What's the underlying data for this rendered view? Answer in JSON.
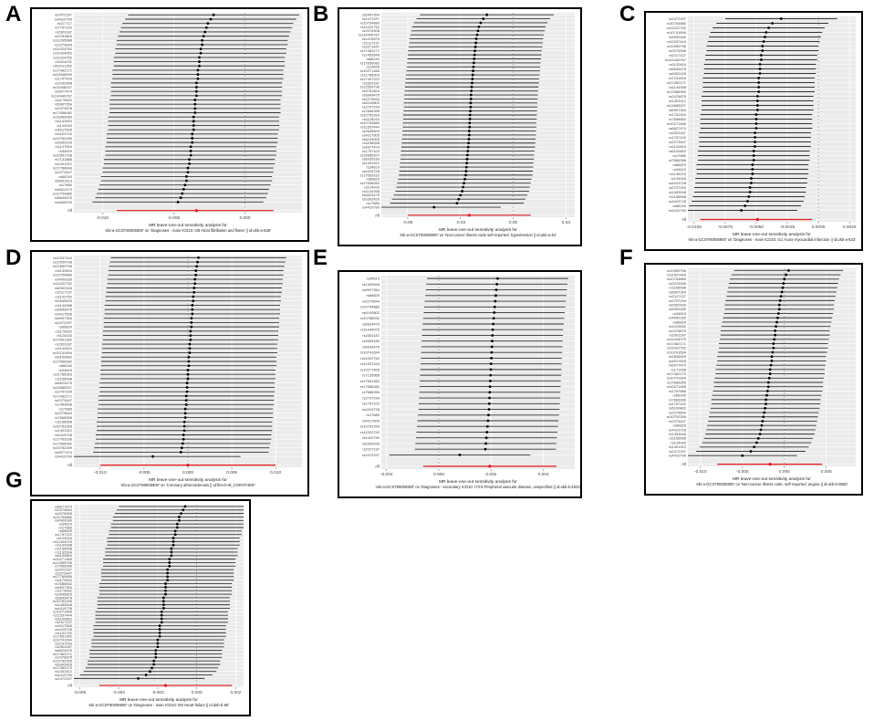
{
  "figure": {
    "panels": [
      {
        "letter": "A"
      },
      {
        "letter": "B"
      },
      {
        "letter": "C"
      },
      {
        "letter": "D"
      },
      {
        "letter": "E"
      },
      {
        "letter": "F"
      },
      {
        "letter": "G"
      }
    ]
  },
  "chart_data": [
    {
      "type": "scatter",
      "panel": "A",
      "title": "MR leave-one-out sensitivity analysis for",
      "subtitle": "'ebi-a-GCST90006900' on 'Diagnoses - main ICD10: I48 Atrial fibrillation and flutter || id:ukb-a-536'",
      "xlabel": "",
      "ylabel": "",
      "xlim": [
        -0.012,
        0.004
      ],
      "xticks": [
        -0.01,
        -0.005,
        0.0
      ],
      "grid": true,
      "all_label": "All",
      "snps": [
        "rs2472297",
        "rs4410790",
        "rs117717",
        "rs7757102",
        "rs2301187",
        "rs3761804",
        "rs11295088",
        "rs2279644",
        "rs11024752",
        "rs11024052",
        "rs11024752",
        "rs1024211",
        "rs61011352",
        "rs17462171",
        "rs10948290",
        "rs1767204",
        "rs3760308",
        "rs14408037",
        "rs6977474",
        "rs114440767",
        "rs1179632",
        "rs6907354",
        "rs2473578",
        "rs17656082",
        "rs15369080",
        "rs1142810",
        "rs124043",
        "rs4017505",
        "rs1123744",
        "rs10752269",
        "rs6302426",
        "rs1147504",
        "rs34619",
        "rs10591798",
        "rs7131888",
        "rs1401912",
        "rs17769643",
        "rs2273447",
        "rs66240",
        "rs6691813",
        "rs17680",
        "rs5622473",
        "rs10754880",
        "rs6649475",
        "rs4849029"
      ],
      "estimates": [
        -0.0022,
        -0.0024,
        -0.0026,
        -0.0027,
        -0.0028,
        -0.0029,
        -0.003,
        -0.003,
        -0.0031,
        -0.0031,
        -0.0032,
        -0.0032,
        -0.0032,
        -0.0033,
        -0.0033,
        -0.0033,
        -0.0034,
        -0.0034,
        -0.0034,
        -0.0034,
        -0.0035,
        -0.0035,
        -0.0035,
        -0.0035,
        -0.0036,
        -0.0036,
        -0.0036,
        -0.0036,
        -0.0037,
        -0.0037,
        -0.0037,
        -0.0038,
        -0.0038,
        -0.0038,
        -0.0039,
        -0.0039,
        -0.004,
        -0.004,
        -0.0041,
        -0.0041,
        -0.0042,
        -0.0043,
        -0.0044,
        -0.0045,
        -0.0047
      ],
      "ci_half_width": 0.006,
      "all_estimate": -0.0034,
      "all_ci": [
        -0.009,
        0.002
      ]
    },
    {
      "type": "scatter",
      "panel": "B",
      "title": "MR leave-one-out sensitivity analysis for",
      "subtitle": "'ebi-a-GCST90006900' on 'Non-cancer illness code self-reported: hypertension || id:ukb-a-61'",
      "xlabel": "",
      "ylabel": "",
      "xlim": [
        -0.075,
        0.035
      ],
      "xticks": [
        -0.06,
        -0.03,
        0.0,
        0.03
      ],
      "grid": true,
      "all_label": "All",
      "snps": [
        "rs6907354",
        "rs2472297",
        "rs10754880",
        "rs11022752",
        "rs2076306",
        "rs114440767",
        "rs2476875",
        "rs2117137",
        "rs2273447",
        "rs17462171",
        "rs1453548",
        "rs66240",
        "rs17656082",
        "rs10826",
        "rs10271465",
        "rs11766303",
        "rs17407022",
        "rs2301187",
        "rs12559796",
        "rs3761804",
        "rs6649475",
        "rs2279644",
        "rs6100802",
        "rs2797294",
        "rs7666396",
        "rs10752269",
        "rs1128243",
        "rs10754880",
        "rs11537444",
        "rs2645829",
        "rs4017505",
        "rs6104005",
        "rs1156598",
        "rs6977474",
        "rs1757102",
        "rs14685207",
        "rs6935183",
        "rs1401912",
        "rs34619",
        "rs4419728",
        "rs17653162",
        "rs66829",
        "rs17656082",
        "rs124043",
        "rs1144398",
        "rs6624475",
        "rs6302426",
        "rs17680",
        "rs4410790"
      ],
      "estimates": [
        -0.015,
        -0.017,
        -0.0185,
        -0.0195,
        -0.02,
        -0.0205,
        -0.021,
        -0.0212,
        -0.0215,
        -0.0218,
        -0.022,
        -0.0222,
        -0.0224,
        -0.0226,
        -0.0228,
        -0.023,
        -0.0232,
        -0.0234,
        -0.0236,
        -0.0238,
        -0.024,
        -0.024,
        -0.0242,
        -0.0242,
        -0.0244,
        -0.0246,
        -0.0246,
        -0.0248,
        -0.0248,
        -0.025,
        -0.025,
        -0.0252,
        -0.0254,
        -0.0256,
        -0.0258,
        -0.026,
        -0.0262,
        -0.0264,
        -0.0266,
        -0.0268,
        -0.027,
        -0.0275,
        -0.028,
        -0.0285,
        -0.029,
        -0.03,
        -0.031,
        -0.032,
        -0.045
      ],
      "ci_half_width": 0.038,
      "all_estimate": -0.025,
      "all_ci": [
        -0.06,
        0.01
      ]
    },
    {
      "type": "scatter",
      "panel": "C",
      "title": "MR leave-one-out sensitivity analysis for",
      "subtitle": "'ebi-a-GCST90006900' on 'Diagnoses - main ICD10: I21 Acute myocardial infarction || id:ukb-a-533'",
      "xlabel": "",
      "ylabel": "",
      "xlim": [
        -0.0105,
        0.003
      ],
      "xticks": [
        -0.01,
        -0.0075,
        -0.005,
        -0.0025,
        0.0,
        0.0025
      ],
      "grid": true,
      "all_label": "All",
      "snps": [
        "rs2472297",
        "rs10754880",
        "rs11022752",
        "rs10741694",
        "rs4909180",
        "rs11537444",
        "rs12559796",
        "rs2076306",
        "rs2117137",
        "rs114440767",
        "rs1132604",
        "rs6649475",
        "rs6302426",
        "rs7151604",
        "rs17462171",
        "rs1144398",
        "rs17666355",
        "rs2476875",
        "rs1401912",
        "rs14685207",
        "rs6907354",
        "rs1761304",
        "rs7656652",
        "rs10271465",
        "rs6627474",
        "rs2301187",
        "rs1757102",
        "rs2273447",
        "rs1142810",
        "rs6100802",
        "rs17680",
        "rs7666396",
        "rs66829",
        "rs34619",
        "rs1146215",
        "rs124043",
        "rs4419728",
        "rs2797294",
        "rs1453548",
        "rs1156598",
        "rs4419728",
        "rs66240",
        "rs4410790"
      ],
      "estimates": [
        -0.003,
        -0.0037,
        -0.004,
        -0.0042,
        -0.0043,
        -0.0044,
        -0.0045,
        -0.0045,
        -0.0046,
        -0.0046,
        -0.0047,
        -0.0047,
        -0.0047,
        -0.0048,
        -0.0048,
        -0.0048,
        -0.0048,
        -0.0049,
        -0.0049,
        -0.0049,
        -0.0049,
        -0.005,
        -0.005,
        -0.005,
        -0.005,
        -0.0051,
        -0.0051,
        -0.0051,
        -0.0051,
        -0.0052,
        -0.0052,
        -0.0052,
        -0.0053,
        -0.0053,
        -0.0053,
        -0.0054,
        -0.0054,
        -0.0055,
        -0.0055,
        -0.0056,
        -0.0057,
        -0.0059,
        -0.0062
      ],
      "ci_half_width": 0.0045,
      "all_estimate": -0.0049,
      "all_ci": [
        -0.0095,
        -0.0005
      ]
    },
    {
      "type": "scatter",
      "panel": "D",
      "title": "MR leave-one-out sensitivity analysis for",
      "subtitle": "'ebi-a-GCST90006900' on 'Coronary atherosclerosis || id:finn-b-I9_CORATHER'",
      "xlabel": "",
      "ylabel": "",
      "xlim": [
        -0.013,
        0.013
      ],
      "xticks": [
        -0.01,
        -0.005,
        0.0,
        0.005,
        0.01
      ],
      "grid": true,
      "all_label": "All",
      "snps": [
        "rs11537444",
        "rs12559796",
        "rs12559796",
        "rs1132604",
        "rs10754880",
        "rs4909180",
        "rs11022752",
        "rs6302426",
        "rs2117137",
        "rs1102752",
        "rs2645829",
        "rs1144398",
        "rs6649475",
        "rs4017505",
        "rs6907354",
        "rs2472297",
        "rs66829",
        "rs1179632",
        "rs124043",
        "rs17651352",
        "rs2301187",
        "rs1142810",
        "rs10741694",
        "rs6100802",
        "rs17656082",
        "rs66240",
        "rs34619",
        "rs11766303",
        "rs1156598",
        "rs6624475",
        "rs14685207",
        "rs2797294",
        "rs17462171",
        "rs2273447",
        "rs1453548",
        "rs17680",
        "rs2279644",
        "rs7666396",
        "rs1156598",
        "rs10752269",
        "rs1401912",
        "rs4419728",
        "rs17762036",
        "rs17656082",
        "rs10752269",
        "rs6977474",
        "rs4410790"
      ],
      "estimates": [
        0.0012,
        0.0011,
        0.001,
        0.0009,
        0.0009,
        0.0008,
        0.0008,
        0.0007,
        0.0007,
        0.0006,
        0.0006,
        0.0005,
        0.0005,
        0.0005,
        0.0004,
        0.0004,
        0.0004,
        0.0003,
        0.0003,
        0.0003,
        0.0002,
        0.0002,
        0.0002,
        0.0001,
        0.0001,
        0.0001,
        0.0,
        0.0,
        0.0,
        -0.0001,
        -0.0001,
        -0.0001,
        -0.0002,
        -0.0002,
        -0.0002,
        -0.0003,
        -0.0003,
        -0.0003,
        -0.0004,
        -0.0004,
        -0.0004,
        -0.0005,
        -0.0005,
        -0.0006,
        -0.0007,
        -0.0008,
        -0.004
      ],
      "ci_half_width": 0.01,
      "all_estimate": 0.0,
      "all_ci": [
        -0.01,
        0.01
      ]
    },
    {
      "type": "scatter",
      "panel": "E",
      "title": "MR leave-one-out sensitivity analysis for",
      "subtitle": "'ebi-a-GCST90006900' on 'Diagnoses - secondary ICD10: I73.9 Peripheral vascular disease, unspecified || id:ukb-b-4923'",
      "xlabel": "",
      "ylabel": "",
      "xlim": [
        -0.0022,
        0.0052
      ],
      "xticks": [
        -0.002,
        0.0,
        0.002,
        0.004
      ],
      "grid": true,
      "all_label": "All",
      "snps": [
        "rs34619",
        "rs1453548",
        "rs6907354",
        "rs66829",
        "rs2279644",
        "rs10754880",
        "rs6100802",
        "rs10788032",
        "rs6624475",
        "rs11444075",
        "rs2301187",
        "rs4909180",
        "rs6649475",
        "rs10741694",
        "rs11022752",
        "rs11537444",
        "rs10271465",
        "rs7135566",
        "rs17651352",
        "rs17656082",
        "rs7666396",
        "rs2797294",
        "rs1757102",
        "rs4419728",
        "rs17680",
        "rs4017505",
        "rs10752269",
        "rs11022752",
        "rs4410790",
        "rs6302426",
        "rs2117137",
        "rs2472297"
      ],
      "estimates": [
        0.00225,
        0.00222,
        0.0022,
        0.00218,
        0.00216,
        0.00214,
        0.00212,
        0.0021,
        0.00208,
        0.00206,
        0.00205,
        0.00204,
        0.00203,
        0.00202,
        0.00201,
        0.002,
        0.00199,
        0.00198,
        0.00197,
        0.00196,
        0.00195,
        0.00194,
        0.00193,
        0.00192,
        0.0019,
        0.00188,
        0.00186,
        0.00184,
        0.00182,
        0.0018,
        0.00178,
        0.0008
      ],
      "ci_half_width": 0.0027,
      "all_estimate": 0.00195,
      "all_ci": [
        -0.0006,
        0.0045
      ]
    },
    {
      "type": "scatter",
      "panel": "F",
      "title": "MR leave-one-out sensitivity analysis for",
      "subtitle": "'ebi-a-GCST90006900' on 'Non-cancer illness code, self-reported: angina || id:ukb-b-8650'",
      "xlabel": "",
      "ylabel": "",
      "xlim": [
        -0.0115,
        0.0085
      ],
      "xticks": [
        -0.01,
        -0.005,
        0.0,
        0.005
      ],
      "grid": true,
      "all_label": "All",
      "snps": [
        "rs12559796",
        "rs11537444",
        "rs10754880",
        "rs2076306",
        "rs1156598",
        "rs6907354",
        "rs2117137",
        "rs2797294",
        "rs6302426",
        "rs4909180",
        "rs34619",
        "rs4909180",
        "rs66829",
        "rs1019632",
        "rs2476875",
        "rs2301187",
        "rs11444075",
        "rs17462171",
        "rs11022752",
        "rs10741694",
        "rs2645829",
        "rs4017505",
        "rs6977474",
        "rs171598",
        "rs17462170",
        "rs10741694",
        "rs17666355",
        "rs10271465",
        "rs1757666",
        "rs66240",
        "rs7666396",
        "rs1757102",
        "rs6100802",
        "rs2279644",
        "rs10752269",
        "rs2273447",
        "rs66829",
        "rs4419728",
        "rs1453548",
        "rs1156598",
        "rs124043",
        "rs1401912",
        "rs2472297",
        "rs4410790"
      ],
      "estimates": [
        0.0005,
        0.0002,
        0.0,
        -0.0001,
        -0.0002,
        -0.0003,
        -0.0004,
        -0.0005,
        -0.0006,
        -0.0006,
        -0.0007,
        -0.0008,
        -0.0009,
        -0.001,
        -0.0011,
        -0.0011,
        -0.0012,
        -0.0013,
        -0.0013,
        -0.0014,
        -0.0015,
        -0.0015,
        -0.0016,
        -0.0017,
        -0.0017,
        -0.0018,
        -0.0019,
        -0.0019,
        -0.002,
        -0.0021,
        -0.0022,
        -0.0022,
        -0.0023,
        -0.0024,
        -0.0025,
        -0.0026,
        -0.0027,
        -0.0028,
        -0.0029,
        -0.0031,
        -0.0033,
        -0.0036,
        -0.004,
        -0.005
      ],
      "ci_half_width": 0.0065,
      "all_estimate": -0.0017,
      "all_ci": [
        -0.008,
        0.0045
      ]
    },
    {
      "type": "scatter",
      "panel": "G",
      "title": "MR leave-one-out sensitivity analysis for",
      "subtitle": "'ebi-a-GCST90006900' on 'Diagnoses - main ICD10: I50 Heart failure || id:ukb-b-65'",
      "xlabel": "",
      "ylabel": "",
      "xlim": [
        -0.0063,
        0.0024
      ],
      "xticks": [
        -0.006,
        -0.004,
        -0.002,
        0.0,
        0.002
      ],
      "grid": true,
      "all_label": "All",
      "snps": [
        "rs6977474",
        "rs2279644",
        "rs2076306",
        "rs10754880",
        "rs4909180",
        "rs34619",
        "rs17680",
        "rs66829",
        "rs1757102",
        "rs124043",
        "rs11444075",
        "rs1144398",
        "rs1156598",
        "rs1132604",
        "rs6100802",
        "rs10271465",
        "rs12559796",
        "rs7666396",
        "rs2472297",
        "rs2273447",
        "rs17769656",
        "rs1179632",
        "rs7656652",
        "rs6907354",
        "rs1179632",
        "rs2645829",
        "rs6649475",
        "rs10752269",
        "rs1453548",
        "rs4419728",
        "rs10271465",
        "rs11537444",
        "rs6100802",
        "rs2117137",
        "rs4017505",
        "rs4419728",
        "rs1102752",
        "rs17651352",
        "rs10741694",
        "rs2797294",
        "rs2301187",
        "rs6624475",
        "rs17462171",
        "rs2476875",
        "rs10752269",
        "rs6302426",
        "rs17462170",
        "rs1401912",
        "rs4410790",
        "rs2472297"
      ],
      "estimates": [
        -0.0006,
        -0.0007,
        -0.0008,
        -0.0009,
        -0.0009,
        -0.001,
        -0.001,
        -0.0011,
        -0.0011,
        -0.0012,
        -0.0012,
        -0.0012,
        -0.0013,
        -0.0013,
        -0.0013,
        -0.0014,
        -0.0014,
        -0.0014,
        -0.0015,
        -0.0015,
        -0.0015,
        -0.0015,
        -0.0016,
        -0.0016,
        -0.0016,
        -0.0016,
        -0.0017,
        -0.0017,
        -0.0017,
        -0.0017,
        -0.0018,
        -0.0018,
        -0.0018,
        -0.0018,
        -0.0019,
        -0.0019,
        -0.0019,
        -0.0019,
        -0.002,
        -0.002,
        -0.002,
        -0.0021,
        -0.0021,
        -0.0021,
        -0.0022,
        -0.0022,
        -0.0023,
        -0.0024,
        -0.0026,
        -0.003
      ],
      "ci_half_width": 0.0034,
      "all_estimate": -0.0016,
      "all_ci": [
        -0.005,
        0.0018
      ]
    }
  ]
}
